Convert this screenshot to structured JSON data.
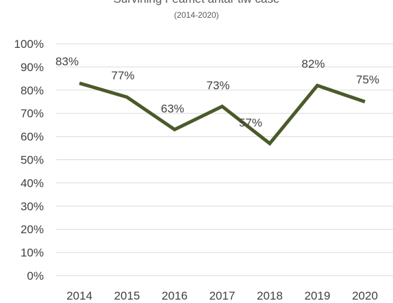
{
  "chart_data": {
    "type": "line",
    "title": "Survining Feamet antar tiw case",
    "subtitle": "(2014-2020)",
    "xlabel": "",
    "ylabel": "",
    "categories": [
      "2014",
      "2015",
      "2016",
      "2017",
      "2018",
      "2019",
      "2020"
    ],
    "series": [
      {
        "values": [
          83,
          77,
          63,
          73,
          57,
          82,
          75
        ],
        "data_labels": [
          "83%",
          "77%",
          "63%",
          "73%",
          "57%",
          "82%",
          "75%"
        ]
      }
    ],
    "ylim": [
      0,
      100
    ],
    "y_ticks": [
      "0%",
      "10%",
      "20%",
      "30%",
      "40%",
      "50%",
      "60%",
      "70%",
      "80%",
      "90%",
      "100%"
    ],
    "grid": true,
    "legend": "none",
    "colors": {
      "line": "#4a5a2a",
      "grid": "#d9d9d9",
      "text": "#404040"
    }
  }
}
